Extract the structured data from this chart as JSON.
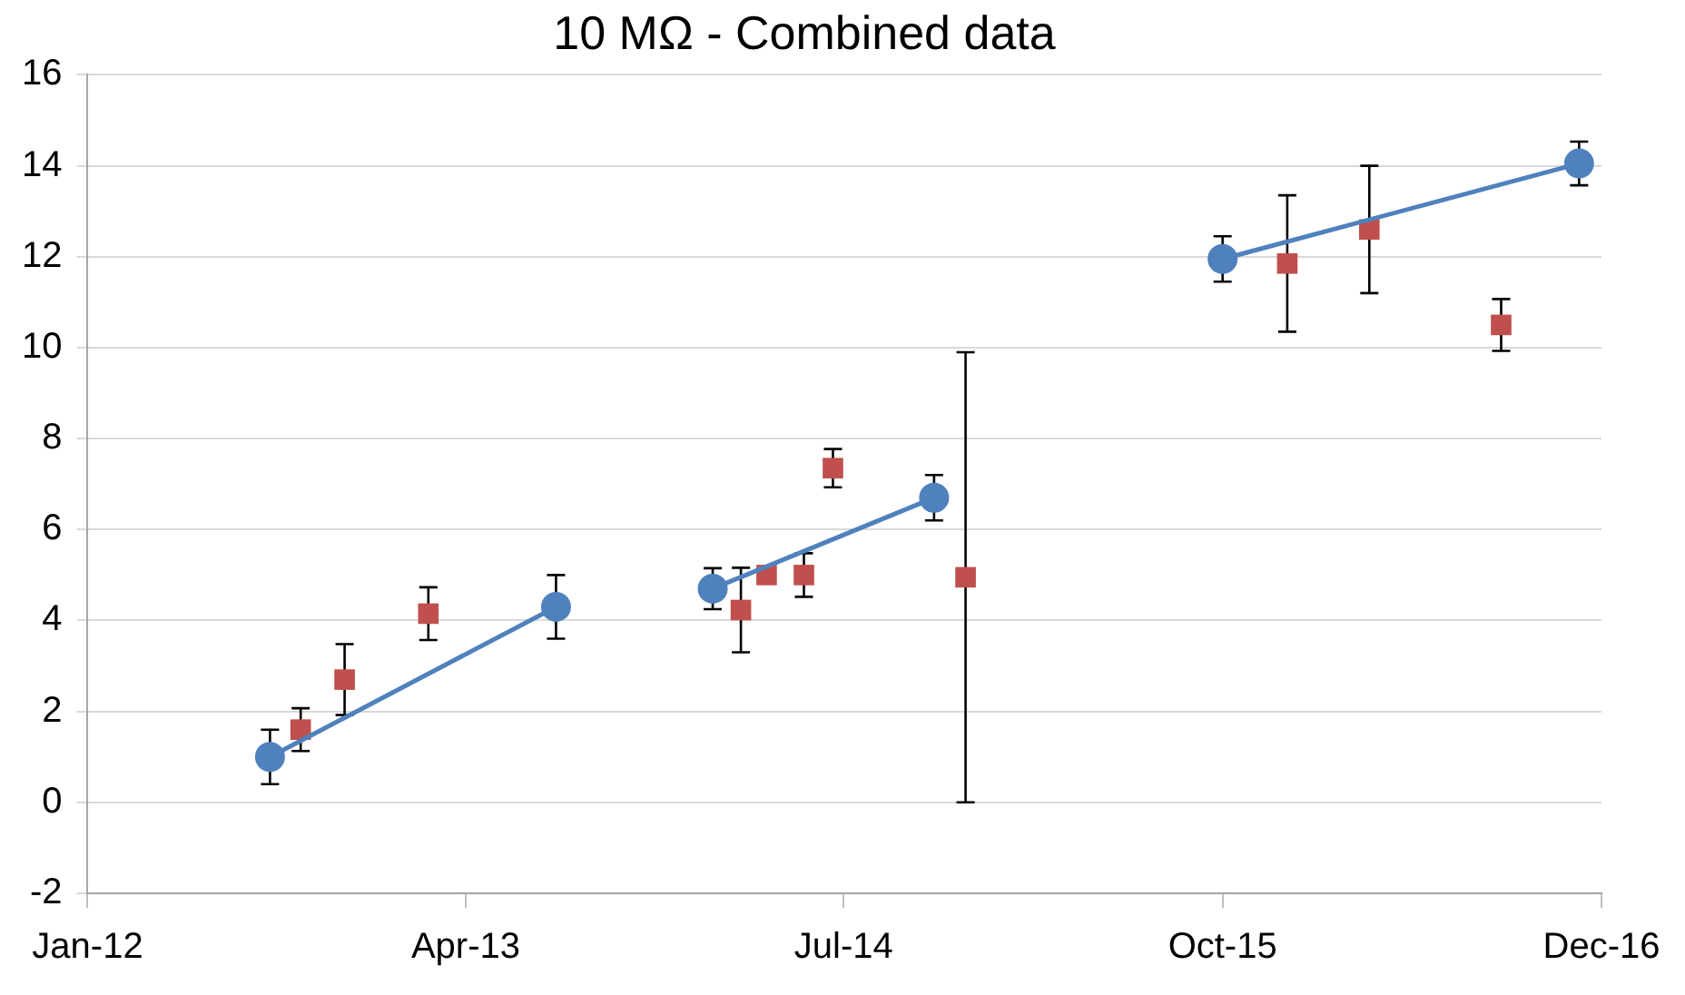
{
  "chart_data": {
    "type": "scatter",
    "title": "10 MΩ - Combined data",
    "xlim": [
      "2012-01-01",
      "2016-12-31"
    ],
    "xticks": [
      {
        "value": "2012-01-01",
        "label": "Jan-12"
      },
      {
        "value": "2013-04-01",
        "label": "Apr-13"
      },
      {
        "value": "2014-07-01",
        "label": "Jul-14"
      },
      {
        "value": "2015-10-01",
        "label": "Oct-15"
      },
      {
        "value": "2016-12-31",
        "label": "Dec-16"
      }
    ],
    "ylim": [
      -2,
      16
    ],
    "yticks": [
      -2,
      0,
      2,
      4,
      6,
      8,
      10,
      12,
      14,
      16
    ],
    "grid": "y",
    "legend": false,
    "series": [
      {
        "type": "line",
        "color": "#4f81bd",
        "marker": "circle",
        "line_style": "solid",
        "x": [
          "2012-08-08",
          "2013-07-19",
          "2013-10-15",
          "2014-01-24",
          "2014-10-18",
          "2015-04-01",
          "2015-10-01",
          "2016-12-04"
        ],
        "values": [
          1.0,
          4.3,
          null,
          4.7,
          6.7,
          null,
          11.95,
          14.05
        ],
        "errors": [
          0.6,
          0.7,
          null,
          0.45,
          0.5,
          null,
          0.5,
          0.48
        ]
      },
      {
        "type": "scatter",
        "color": "#c0504d",
        "marker": "square",
        "x": [
          "2012-09-14",
          "2012-11-06",
          "2013-02-15",
          "2014-02-27",
          "2014-03-30",
          "2014-05-14",
          "2014-06-18",
          "2014-11-25",
          "2015-12-18",
          "2016-03-26",
          "2016-09-01"
        ],
        "values": [
          1.6,
          2.7,
          4.15,
          4.23,
          5.0,
          5.0,
          7.35,
          4.95,
          11.85,
          12.6,
          10.5
        ],
        "errors": [
          0.47,
          0.78,
          0.58,
          0.93,
          null,
          0.48,
          0.42,
          4.95,
          1.5,
          1.4,
          0.57
        ]
      }
    ]
  }
}
